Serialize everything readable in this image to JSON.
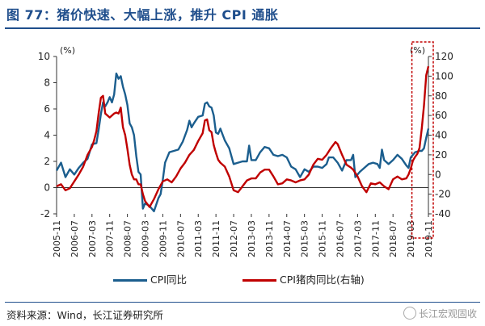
{
  "title": "图 77：猪价快速、大幅上涨，推升 CPI 通胀",
  "source": "资料来源：Wind，长江证券研究所",
  "watermark": "长江宏观固收",
  "colors": {
    "cpi": "#1b5e8e",
    "pork": "#c00000",
    "title": "#1f4e8c",
    "highlight_box": "#c00000"
  },
  "chart_data": {
    "type": "line",
    "left_axis": {
      "unit": "(%)",
      "ylim": [
        -2,
        10
      ],
      "ticks": [
        -2,
        0,
        2,
        4,
        6,
        8,
        10
      ]
    },
    "right_axis": {
      "unit": "(%)",
      "ylim": [
        -40,
        120
      ],
      "ticks": [
        -40,
        -20,
        0,
        20,
        40,
        60,
        80,
        100,
        120
      ]
    },
    "x_ticks": [
      "2005-11",
      "2006-07",
      "2007-03",
      "2007-11",
      "2008-07",
      "2009-03",
      "2009-11",
      "2010-07",
      "2011-03",
      "2011-11",
      "2012-07",
      "2013-03",
      "2013-11",
      "2014-07",
      "2015-03",
      "2015-11",
      "2016-07",
      "2017-03",
      "2017-11",
      "2018-07",
      "2019-03",
      "2019-11"
    ],
    "x_range": [
      "2005-11",
      "2019-11"
    ],
    "highlight_range": [
      "2019-05",
      "2019-11"
    ],
    "series": [
      {
        "name": "CPI同比",
        "axis": "left",
        "points": [
          [
            "2005-11",
            1.3
          ],
          [
            "2006-01",
            1.9
          ],
          [
            "2006-03",
            0.8
          ],
          [
            "2006-05",
            1.4
          ],
          [
            "2006-07",
            1.0
          ],
          [
            "2006-09",
            1.5
          ],
          [
            "2006-11",
            1.9
          ],
          [
            "2007-01",
            2.2
          ],
          [
            "2007-03",
            3.3
          ],
          [
            "2007-05",
            3.4
          ],
          [
            "2007-06",
            4.4
          ],
          [
            "2007-07",
            5.6
          ],
          [
            "2007-08",
            6.5
          ],
          [
            "2007-09",
            6.2
          ],
          [
            "2007-10",
            6.5
          ],
          [
            "2007-11",
            6.9
          ],
          [
            "2007-12",
            6.5
          ],
          [
            "2008-01",
            7.1
          ],
          [
            "2008-02",
            8.7
          ],
          [
            "2008-03",
            8.3
          ],
          [
            "2008-04",
            8.5
          ],
          [
            "2008-05",
            7.7
          ],
          [
            "2008-06",
            7.1
          ],
          [
            "2008-07",
            6.3
          ],
          [
            "2008-08",
            4.9
          ],
          [
            "2008-09",
            4.6
          ],
          [
            "2008-10",
            4.0
          ],
          [
            "2008-11",
            2.4
          ],
          [
            "2008-12",
            1.2
          ],
          [
            "2009-01",
            1.0
          ],
          [
            "2009-02",
            -1.6
          ],
          [
            "2009-03",
            -1.2
          ],
          [
            "2009-05",
            -1.4
          ],
          [
            "2009-07",
            -1.8
          ],
          [
            "2009-09",
            -0.8
          ],
          [
            "2009-10",
            -0.5
          ],
          [
            "2009-11",
            0.6
          ],
          [
            "2009-12",
            1.9
          ],
          [
            "2010-02",
            2.7
          ],
          [
            "2010-04",
            2.8
          ],
          [
            "2010-06",
            2.9
          ],
          [
            "2010-08",
            3.5
          ],
          [
            "2010-10",
            4.4
          ],
          [
            "2010-11",
            5.1
          ],
          [
            "2010-12",
            4.6
          ],
          [
            "2011-01",
            4.9
          ],
          [
            "2011-03",
            5.4
          ],
          [
            "2011-05",
            5.5
          ],
          [
            "2011-06",
            6.4
          ],
          [
            "2011-07",
            6.5
          ],
          [
            "2011-08",
            6.2
          ],
          [
            "2011-09",
            6.1
          ],
          [
            "2011-10",
            5.5
          ],
          [
            "2011-11",
            4.2
          ],
          [
            "2011-12",
            4.1
          ],
          [
            "2012-01",
            4.5
          ],
          [
            "2012-03",
            3.6
          ],
          [
            "2012-05",
            3.0
          ],
          [
            "2012-07",
            1.8
          ],
          [
            "2012-09",
            1.9
          ],
          [
            "2012-11",
            2.0
          ],
          [
            "2013-01",
            2.0
          ],
          [
            "2013-02",
            3.2
          ],
          [
            "2013-03",
            2.1
          ],
          [
            "2013-05",
            2.1
          ],
          [
            "2013-07",
            2.7
          ],
          [
            "2013-09",
            3.1
          ],
          [
            "2013-11",
            3.0
          ],
          [
            "2014-01",
            2.5
          ],
          [
            "2014-03",
            2.4
          ],
          [
            "2014-05",
            2.5
          ],
          [
            "2014-07",
            2.3
          ],
          [
            "2014-09",
            1.6
          ],
          [
            "2014-11",
            1.4
          ],
          [
            "2015-01",
            0.8
          ],
          [
            "2015-03",
            1.4
          ],
          [
            "2015-05",
            1.2
          ],
          [
            "2015-07",
            1.6
          ],
          [
            "2015-09",
            1.6
          ],
          [
            "2015-11",
            1.5
          ],
          [
            "2016-01",
            1.8
          ],
          [
            "2016-02",
            2.3
          ],
          [
            "2016-04",
            2.3
          ],
          [
            "2016-06",
            1.9
          ],
          [
            "2016-08",
            1.3
          ],
          [
            "2016-10",
            2.1
          ],
          [
            "2016-12",
            2.1
          ],
          [
            "2017-01",
            2.5
          ],
          [
            "2017-02",
            0.8
          ],
          [
            "2017-04",
            1.2
          ],
          [
            "2017-06",
            1.5
          ],
          [
            "2017-08",
            1.8
          ],
          [
            "2017-10",
            1.9
          ],
          [
            "2017-12",
            1.8
          ],
          [
            "2018-01",
            1.5
          ],
          [
            "2018-02",
            2.9
          ],
          [
            "2018-03",
            2.1
          ],
          [
            "2018-05",
            1.8
          ],
          [
            "2018-07",
            2.1
          ],
          [
            "2018-09",
            2.5
          ],
          [
            "2018-11",
            2.2
          ],
          [
            "2019-01",
            1.7
          ],
          [
            "2019-02",
            1.5
          ],
          [
            "2019-03",
            2.3
          ],
          [
            "2019-05",
            2.7
          ],
          [
            "2019-07",
            2.8
          ],
          [
            "2019-08",
            2.8
          ],
          [
            "2019-09",
            3.0
          ],
          [
            "2019-10",
            3.8
          ],
          [
            "2019-11",
            4.5
          ]
        ]
      },
      {
        "name": "CPI猪肉同比(右轴)",
        "axis": "right",
        "points": [
          [
            "2005-11",
            -12
          ],
          [
            "2006-01",
            -10
          ],
          [
            "2006-03",
            -16
          ],
          [
            "2006-05",
            -14
          ],
          [
            "2006-07",
            -7
          ],
          [
            "2006-09",
            0
          ],
          [
            "2006-11",
            8
          ],
          [
            "2007-01",
            20
          ],
          [
            "2007-03",
            28
          ],
          [
            "2007-04",
            35
          ],
          [
            "2007-05",
            44
          ],
          [
            "2007-06",
            62
          ],
          [
            "2007-07",
            78
          ],
          [
            "2007-08",
            80
          ],
          [
            "2007-09",
            62
          ],
          [
            "2007-11",
            58
          ],
          [
            "2007-12",
            60
          ],
          [
            "2008-01",
            62
          ],
          [
            "2008-02",
            63
          ],
          [
            "2008-03",
            62
          ],
          [
            "2008-04",
            68
          ],
          [
            "2008-05",
            48
          ],
          [
            "2008-06",
            40
          ],
          [
            "2008-07",
            26
          ],
          [
            "2008-08",
            10
          ],
          [
            "2008-09",
            0
          ],
          [
            "2008-10",
            -5
          ],
          [
            "2008-11",
            -5
          ],
          [
            "2008-12",
            -10
          ],
          [
            "2009-01",
            -10
          ],
          [
            "2009-02",
            -20
          ],
          [
            "2009-03",
            -27
          ],
          [
            "2009-05",
            -33
          ],
          [
            "2009-07",
            -25
          ],
          [
            "2009-09",
            -15
          ],
          [
            "2009-11",
            -7
          ],
          [
            "2010-01",
            -5
          ],
          [
            "2010-03",
            -8
          ],
          [
            "2010-05",
            -2
          ],
          [
            "2010-07",
            6
          ],
          [
            "2010-09",
            12
          ],
          [
            "2010-11",
            20
          ],
          [
            "2011-01",
            25
          ],
          [
            "2011-03",
            34
          ],
          [
            "2011-05",
            42
          ],
          [
            "2011-06",
            55
          ],
          [
            "2011-07",
            56
          ],
          [
            "2011-08",
            45
          ],
          [
            "2011-09",
            43
          ],
          [
            "2011-10",
            30
          ],
          [
            "2011-11",
            22
          ],
          [
            "2011-12",
            15
          ],
          [
            "2012-01",
            12
          ],
          [
            "2012-03",
            8
          ],
          [
            "2012-05",
            -2
          ],
          [
            "2012-07",
            -16
          ],
          [
            "2012-09",
            -18
          ],
          [
            "2012-11",
            -12
          ],
          [
            "2013-01",
            -6
          ],
          [
            "2013-03",
            -4
          ],
          [
            "2013-05",
            -4
          ],
          [
            "2013-07",
            2
          ],
          [
            "2013-09",
            5
          ],
          [
            "2013-11",
            5
          ],
          [
            "2014-01",
            -2
          ],
          [
            "2014-03",
            -10
          ],
          [
            "2014-05",
            -9
          ],
          [
            "2014-07",
            -5
          ],
          [
            "2014-09",
            -6
          ],
          [
            "2014-11",
            -8
          ],
          [
            "2015-01",
            -6
          ],
          [
            "2015-03",
            -5
          ],
          [
            "2015-05",
            0
          ],
          [
            "2015-07",
            10
          ],
          [
            "2015-09",
            16
          ],
          [
            "2015-11",
            15
          ],
          [
            "2016-01",
            20
          ],
          [
            "2016-03",
            27
          ],
          [
            "2016-05",
            33
          ],
          [
            "2016-06",
            31
          ],
          [
            "2016-08",
            20
          ],
          [
            "2016-10",
            10
          ],
          [
            "2016-12",
            7
          ],
          [
            "2017-01",
            5
          ],
          [
            "2017-03",
            -2
          ],
          [
            "2017-05",
            -12
          ],
          [
            "2017-07",
            -18
          ],
          [
            "2017-09",
            -9
          ],
          [
            "2017-11",
            -10
          ],
          [
            "2018-01",
            -8
          ],
          [
            "2018-03",
            -12
          ],
          [
            "2018-05",
            -15
          ],
          [
            "2018-07",
            -5
          ],
          [
            "2018-09",
            -2
          ],
          [
            "2018-11",
            -5
          ],
          [
            "2019-01",
            -4
          ],
          [
            "2019-02",
            0
          ],
          [
            "2019-03",
            6
          ],
          [
            "2019-04",
            14
          ],
          [
            "2019-05",
            18
          ],
          [
            "2019-06",
            21
          ],
          [
            "2019-07",
            27
          ],
          [
            "2019-08",
            47
          ],
          [
            "2019-09",
            70
          ],
          [
            "2019-10",
            101
          ],
          [
            "2019-11",
            110
          ]
        ]
      }
    ]
  }
}
